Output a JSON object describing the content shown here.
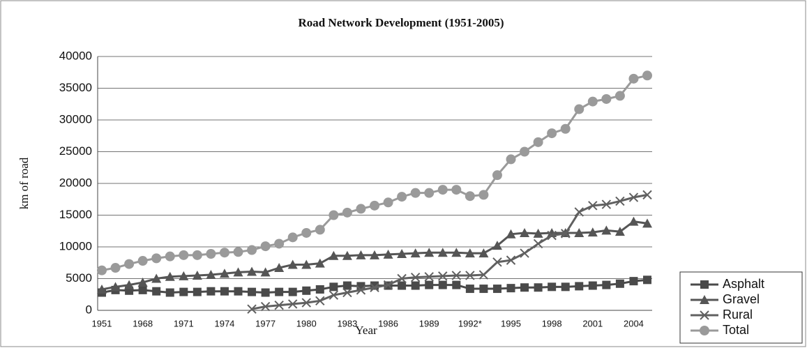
{
  "chart_data": {
    "type": "line",
    "title": "Road Network Development (1951-2005)",
    "x_label": "Year",
    "y_label": "km of road",
    "categories": [
      "1951",
      null,
      null,
      "1968",
      null,
      null,
      "1971",
      null,
      null,
      "1974",
      null,
      null,
      "1977",
      null,
      null,
      "1980",
      null,
      null,
      "1983",
      null,
      null,
      "1986",
      null,
      null,
      "1989",
      null,
      null,
      "1992*",
      null,
      null,
      "1995",
      null,
      null,
      "1998",
      null,
      null,
      "2001",
      null,
      null,
      "2004",
      null
    ],
    "ylim": [
      0,
      40000
    ],
    "yticks": [
      0,
      5000,
      10000,
      15000,
      20000,
      25000,
      30000,
      35000,
      40000
    ],
    "grid": true,
    "legend": "lower right",
    "series": [
      {
        "name": "Asphalt",
        "color": "#4a4a4a",
        "marker": "square",
        "values": [
          2800,
          3200,
          3100,
          3200,
          3000,
          2800,
          2900,
          2900,
          3000,
          3000,
          3000,
          2900,
          2800,
          2900,
          2900,
          3100,
          3300,
          3700,
          3900,
          3800,
          3900,
          3900,
          3900,
          3900,
          4000,
          4000,
          4000,
          3400,
          3400,
          3400,
          3500,
          3600,
          3600,
          3700,
          3700,
          3800,
          3900,
          4000,
          4200,
          4600,
          4800
        ]
      },
      {
        "name": "Gravel",
        "color": "#555555",
        "marker": "triangle",
        "values": [
          3300,
          3700,
          4000,
          4400,
          5000,
          5300,
          5400,
          5500,
          5600,
          5800,
          6000,
          6100,
          6000,
          6700,
          7200,
          7200,
          7400,
          8600,
          8600,
          8700,
          8700,
          8800,
          8900,
          9000,
          9100,
          9100,
          9100,
          9000,
          9000,
          10200,
          12000,
          12200,
          12100,
          12200,
          12200,
          12200,
          12300,
          12600,
          12400,
          14000,
          13700
        ]
      },
      {
        "name": "Rural",
        "color": "#606060",
        "marker": "x",
        "values": [
          null,
          null,
          null,
          null,
          null,
          null,
          null,
          null,
          null,
          null,
          null,
          200,
          600,
          800,
          1000,
          1200,
          1500,
          2400,
          2800,
          3200,
          3600,
          4000,
          5000,
          5200,
          5300,
          5400,
          5500,
          5500,
          5600,
          7600,
          7900,
          9000,
          10500,
          11800,
          12100,
          15500,
          16500,
          16700,
          17200,
          17800,
          18200
        ]
      },
      {
        "name": "Total",
        "color": "#9a9a9a",
        "marker": "circle",
        "values": [
          6300,
          6700,
          7300,
          7800,
          8200,
          8500,
          8700,
          8700,
          8900,
          9100,
          9200,
          9500,
          10100,
          10500,
          11500,
          12200,
          12700,
          15000,
          15400,
          16000,
          16500,
          17000,
          17900,
          18500,
          18500,
          19000,
          19000,
          18000,
          18200,
          21300,
          23800,
          25000,
          26500,
          27900,
          28600,
          31700,
          32900,
          33300,
          33800,
          36500,
          37000
        ]
      }
    ]
  }
}
